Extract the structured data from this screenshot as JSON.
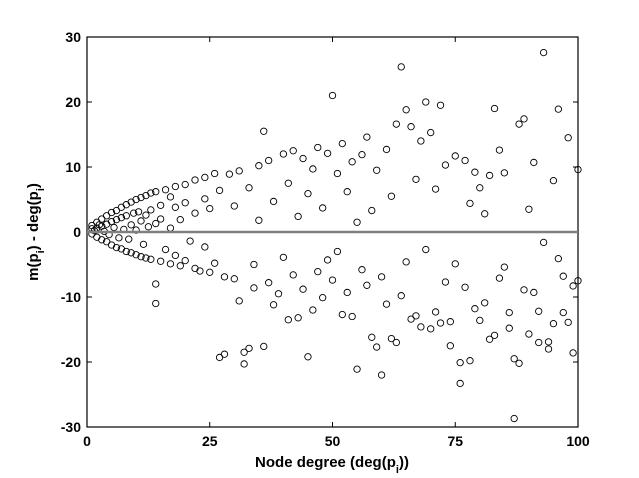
{
  "chart_data": {
    "type": "scatter",
    "title": "",
    "xlabel": "Node degree (deg(p_i))",
    "ylabel": "m(p_i) - deg(p_i)",
    "xlim": [
      0,
      100
    ],
    "ylim": [
      -30,
      30
    ],
    "xticks": [
      0,
      25,
      50,
      75,
      100
    ],
    "yticks": [
      -30,
      -20,
      -10,
      0,
      10,
      20,
      30
    ],
    "x_tick_labels": [
      "0",
      "25",
      "50",
      "75",
      "100"
    ],
    "y_tick_labels": [
      "-30",
      "-20",
      "-10",
      "0",
      "10",
      "20",
      "30"
    ],
    "grid": false,
    "marker": "open-circle",
    "marker_color": "#000000",
    "reference_line": {
      "y": 0,
      "color": "#808080"
    },
    "series": [
      {
        "points": [
          [
            1,
            0.5
          ],
          [
            1,
            -0.3
          ],
          [
            1,
            1.0
          ],
          [
            1.5,
            0.2
          ],
          [
            2,
            1.5
          ],
          [
            2,
            -0.8
          ],
          [
            2,
            0.6
          ],
          [
            2.5,
            1.1
          ],
          [
            3,
            2.0
          ],
          [
            3,
            -1.2
          ],
          [
            3,
            0.9
          ],
          [
            3.5,
            0.1
          ],
          [
            4,
            2.5
          ],
          [
            4,
            -1.5
          ],
          [
            4,
            1.2
          ],
          [
            4.5,
            -0.4
          ],
          [
            5,
            3.0
          ],
          [
            5,
            -2.0
          ],
          [
            5,
            1.6
          ],
          [
            5.5,
            0.7
          ],
          [
            6,
            3.3
          ],
          [
            6,
            -2.4
          ],
          [
            6,
            1.9
          ],
          [
            6.5,
            -0.9
          ],
          [
            7,
            3.8
          ],
          [
            7,
            -2.6
          ],
          [
            7,
            2.2
          ],
          [
            7.5,
            0.4
          ],
          [
            8,
            4.2
          ],
          [
            8,
            -3.0
          ],
          [
            8,
            2.5
          ],
          [
            8.5,
            -1.1
          ],
          [
            9,
            4.6
          ],
          [
            9,
            -3.2
          ],
          [
            9,
            1.1
          ],
          [
            9.5,
            2.9
          ],
          [
            10,
            5.0
          ],
          [
            10,
            -3.5
          ],
          [
            10,
            0.3
          ],
          [
            10.5,
            3.1
          ],
          [
            11,
            5.3
          ],
          [
            11,
            -3.8
          ],
          [
            11,
            1.7
          ],
          [
            11.5,
            -1.9
          ],
          [
            12,
            5.6
          ],
          [
            12,
            -4.0
          ],
          [
            12,
            2.6
          ],
          [
            12.5,
            0.8
          ],
          [
            13,
            6.0
          ],
          [
            13,
            -4.2
          ],
          [
            13,
            3.4
          ],
          [
            14,
            -8.0
          ],
          [
            14,
            -11.0
          ],
          [
            14,
            6.2
          ],
          [
            14,
            1.3
          ],
          [
            15,
            4.1
          ],
          [
            15,
            -4.5
          ],
          [
            15,
            2.0
          ],
          [
            16,
            6.5
          ],
          [
            16,
            -2.7
          ],
          [
            17,
            5.4
          ],
          [
            17,
            -4.9
          ],
          [
            17,
            0.6
          ],
          [
            18,
            7.0
          ],
          [
            18,
            -3.6
          ],
          [
            18,
            3.8
          ],
          [
            19,
            -5.2
          ],
          [
            19,
            1.9
          ],
          [
            20,
            7.3
          ],
          [
            20,
            -4.4
          ],
          [
            20,
            4.5
          ],
          [
            21,
            -1.4
          ],
          [
            22,
            8.0
          ],
          [
            22,
            -5.6
          ],
          [
            22,
            2.9
          ],
          [
            23,
            -6.0
          ],
          [
            24,
            8.4
          ],
          [
            24,
            5.1
          ],
          [
            24,
            -2.3
          ],
          [
            25,
            -6.2
          ],
          [
            25,
            3.6
          ],
          [
            26,
            9.0
          ],
          [
            26,
            -4.8
          ],
          [
            27,
            -19.3
          ],
          [
            27,
            6.4
          ],
          [
            28,
            -18.8
          ],
          [
            28,
            -6.9
          ],
          [
            29,
            8.9
          ],
          [
            30,
            -7.2
          ],
          [
            30,
            4.0
          ],
          [
            31,
            9.4
          ],
          [
            31,
            -10.6
          ],
          [
            32,
            -18.5
          ],
          [
            32,
            -20.3
          ],
          [
            33,
            -17.9
          ],
          [
            33,
            6.8
          ],
          [
            34,
            -8.6
          ],
          [
            34,
            -5.0
          ],
          [
            35,
            10.2
          ],
          [
            35,
            1.8
          ],
          [
            36,
            15.5
          ],
          [
            36,
            -17.6
          ],
          [
            37,
            -7.8
          ],
          [
            37,
            11.0
          ],
          [
            38,
            -11.2
          ],
          [
            38,
            4.7
          ],
          [
            39,
            -9.5
          ],
          [
            40,
            12.0
          ],
          [
            40,
            -3.9
          ],
          [
            41,
            -13.5
          ],
          [
            41,
            7.5
          ],
          [
            42,
            12.5
          ],
          [
            42,
            -6.6
          ],
          [
            43,
            -13.2
          ],
          [
            43,
            2.4
          ],
          [
            44,
            11.3
          ],
          [
            44,
            -8.8
          ],
          [
            45,
            -19.2
          ],
          [
            45,
            5.9
          ],
          [
            46,
            -12.0
          ],
          [
            46,
            9.7
          ],
          [
            47,
            -6.1
          ],
          [
            47,
            13.0
          ],
          [
            48,
            3.7
          ],
          [
            48,
            -10.1
          ],
          [
            49,
            12.1
          ],
          [
            49,
            -4.3
          ],
          [
            50,
            21.0
          ],
          [
            50,
            -7.4
          ],
          [
            51,
            9.0
          ],
          [
            51,
            -3.0
          ],
          [
            52,
            13.6
          ],
          [
            52,
            -12.7
          ],
          [
            53,
            -9.3
          ],
          [
            53,
            6.2
          ],
          [
            54,
            -13.0
          ],
          [
            54,
            10.8
          ],
          [
            55,
            -21.1
          ],
          [
            55,
            1.5
          ],
          [
            56,
            11.9
          ],
          [
            56,
            -5.8
          ],
          [
            57,
            14.6
          ],
          [
            57,
            -8.2
          ],
          [
            58,
            -16.2
          ],
          [
            58,
            3.3
          ],
          [
            59,
            -17.7
          ],
          [
            59,
            9.5
          ],
          [
            60,
            -22.0
          ],
          [
            60,
            -6.9
          ],
          [
            61,
            12.7
          ],
          [
            61,
            -11.1
          ],
          [
            62,
            -16.4
          ],
          [
            62,
            5.5
          ],
          [
            63,
            -17.0
          ],
          [
            63,
            16.6
          ],
          [
            64,
            25.4
          ],
          [
            64,
            -9.8
          ],
          [
            65,
            18.8
          ],
          [
            65,
            -4.6
          ],
          [
            66,
            16.2
          ],
          [
            66,
            -13.4
          ],
          [
            67,
            -12.9
          ],
          [
            67,
            8.1
          ],
          [
            68,
            -14.6
          ],
          [
            68,
            14.0
          ],
          [
            69,
            20.0
          ],
          [
            69,
            -2.7
          ],
          [
            70,
            -14.9
          ],
          [
            70,
            15.3
          ],
          [
            71,
            -12.3
          ],
          [
            71,
            6.6
          ],
          [
            72,
            -14.0
          ],
          [
            72,
            19.5
          ],
          [
            73,
            -7.7
          ],
          [
            73,
            10.3
          ],
          [
            74,
            -17.5
          ],
          [
            74,
            -13.8
          ],
          [
            75,
            11.7
          ],
          [
            75,
            -4.9
          ],
          [
            76,
            -23.3
          ],
          [
            76,
            -20.1
          ],
          [
            77,
            11.0
          ],
          [
            77,
            -8.5
          ],
          [
            78,
            -19.8
          ],
          [
            78,
            4.4
          ],
          [
            79,
            9.2
          ],
          [
            79,
            -11.8
          ],
          [
            80,
            -13.6
          ],
          [
            80,
            6.8
          ],
          [
            81,
            -10.9
          ],
          [
            81,
            2.8
          ],
          [
            82,
            -16.5
          ],
          [
            82,
            8.7
          ],
          [
            83,
            19.0
          ],
          [
            83,
            -15.9
          ],
          [
            84,
            -7.1
          ],
          [
            84,
            12.6
          ],
          [
            85,
            -5.4
          ],
          [
            85,
            9.1
          ],
          [
            86,
            -12.4
          ],
          [
            86,
            -14.8
          ],
          [
            87,
            -28.7
          ],
          [
            87,
            -19.5
          ],
          [
            88,
            -20.2
          ],
          [
            88,
            16.6
          ],
          [
            89,
            -8.9
          ],
          [
            89,
            17.4
          ],
          [
            90,
            -15.7
          ],
          [
            90,
            3.5
          ],
          [
            91,
            -9.3
          ],
          [
            91,
            10.7
          ],
          [
            92,
            -17.0
          ],
          [
            92,
            -12.2
          ],
          [
            93,
            27.6
          ],
          [
            93,
            -1.6
          ],
          [
            94,
            -16.9
          ],
          [
            94,
            -18.0
          ],
          [
            95,
            -14.1
          ],
          [
            95,
            7.9
          ],
          [
            96,
            18.9
          ],
          [
            96,
            -4.1
          ],
          [
            97,
            -12.4
          ],
          [
            97,
            -6.8
          ],
          [
            98,
            -13.9
          ],
          [
            98,
            14.5
          ],
          [
            99,
            -8.3
          ],
          [
            99,
            -18.6
          ],
          [
            100,
            9.6
          ],
          [
            100,
            -7.5
          ]
        ]
      }
    ]
  }
}
